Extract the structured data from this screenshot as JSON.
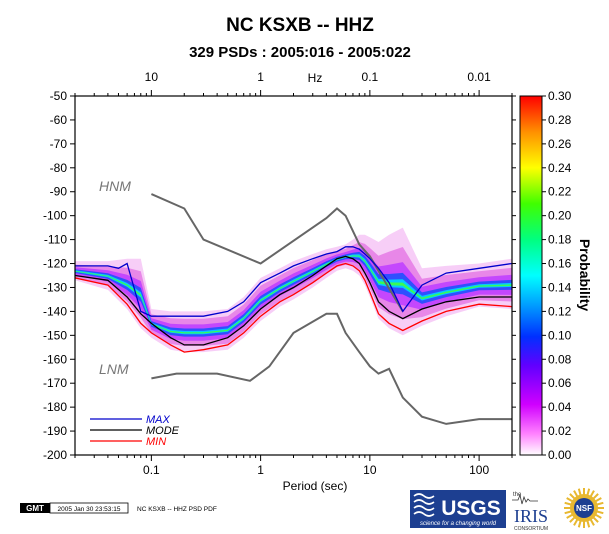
{
  "chart_data": {
    "type": "heatmap",
    "title": "NC KSXB -- HHZ",
    "subtitle": "329 PSDs : 2005:016 - 2005:022",
    "xlabel": "Period (sec)",
    "top_axis_label": "Hz",
    "colorbar_label": "Probability",
    "x_scale": "log",
    "xlim": [
      0.02,
      200
    ],
    "ylim": [
      -200,
      -50
    ],
    "x_ticks": [
      0.1,
      1,
      10,
      100
    ],
    "x_tick_labels": [
      "0.1",
      "1",
      "10",
      "100"
    ],
    "top_ticks": [
      10,
      1,
      0.1,
      0.01
    ],
    "top_tick_labels": [
      "10",
      "1",
      "0.1",
      "0.01"
    ],
    "y_ticks": [
      -50,
      -60,
      -70,
      -80,
      -90,
      -100,
      -110,
      -120,
      -130,
      -140,
      -150,
      -160,
      -170,
      -180,
      -190,
      -200
    ],
    "y_tick_labels": [
      "-50",
      "-60",
      "-70",
      "-80",
      "-90",
      "-100",
      "-110",
      "-120",
      "-130",
      "-140",
      "-150",
      "-160",
      "-170",
      "-180",
      "-190",
      "-200"
    ],
    "colorbar_ticks": [
      "0.30",
      "0.28",
      "0.26",
      "0.24",
      "0.22",
      "0.20",
      "0.18",
      "0.16",
      "0.14",
      "0.12",
      "0.10",
      "0.08",
      "0.06",
      "0.04",
      "0.02",
      "0.00"
    ],
    "colorbar_range": [
      0,
      0.3
    ],
    "legend_position": "bottom-left",
    "series": [
      {
        "name": "MAX",
        "color": "#0000cc",
        "x": [
          0.02,
          0.04,
          0.05,
          0.06,
          0.08,
          0.1,
          0.15,
          0.2,
          0.3,
          0.5,
          0.7,
          1,
          1.5,
          2,
          3,
          4,
          5,
          6,
          7,
          8,
          9,
          10,
          12,
          15,
          20,
          30,
          50,
          100,
          200
        ],
        "y": [
          -121,
          -121,
          -122,
          -120,
          -140,
          -142,
          -142,
          -142,
          -142,
          -140,
          -136,
          -128,
          -124,
          -121,
          -118,
          -116,
          -115,
          -113,
          -113,
          -114,
          -116,
          -118,
          -122,
          -128,
          -140,
          -129,
          -124,
          -122,
          -120
        ]
      },
      {
        "name": "MODE",
        "color": "#000000",
        "x": [
          0.02,
          0.04,
          0.06,
          0.08,
          0.1,
          0.15,
          0.2,
          0.3,
          0.5,
          0.7,
          1,
          1.5,
          2,
          3,
          4,
          5,
          6,
          7,
          8,
          9,
          10,
          12,
          15,
          20,
          30,
          50,
          100,
          200
        ],
        "y": [
          -125,
          -127,
          -134,
          -141,
          -145,
          -151,
          -154,
          -154,
          -151,
          -146,
          -139,
          -133,
          -130,
          -125,
          -121,
          -118,
          -117,
          -118,
          -120,
          -124,
          -128,
          -136,
          -140,
          -143,
          -139,
          -136,
          -134,
          -134
        ]
      },
      {
        "name": "MIN",
        "color": "#ff0000",
        "x": [
          0.02,
          0.04,
          0.06,
          0.08,
          0.1,
          0.15,
          0.2,
          0.3,
          0.5,
          0.7,
          1,
          1.5,
          2,
          3,
          4,
          5,
          6,
          7,
          8,
          9,
          10,
          12,
          15,
          20,
          30,
          50,
          100,
          200
        ],
        "y": [
          -126,
          -129,
          -137,
          -145,
          -149,
          -154,
          -157,
          -156,
          -154,
          -149,
          -142,
          -136,
          -133,
          -128,
          -124,
          -121,
          -120,
          -121,
          -123,
          -127,
          -132,
          -141,
          -145,
          -148,
          -144,
          -140,
          -137,
          -138
        ]
      }
    ],
    "reference_models": [
      {
        "name": "HNM",
        "x": [
          0.1,
          0.2,
          0.3,
          1,
          4,
          5,
          6,
          8,
          10,
          20
        ],
        "y": [
          -91,
          -97,
          -110,
          -120,
          -101,
          -97,
          -100,
          -112,
          -117,
          -140
        ]
      },
      {
        "name": "LNM",
        "x": [
          0.1,
          0.17,
          0.4,
          0.8,
          1.2,
          2,
          4,
          5,
          6,
          8,
          10,
          12,
          15,
          20,
          30,
          50,
          100,
          200
        ],
        "y": [
          -168,
          -166,
          -166,
          -169,
          -163,
          -149,
          -141,
          -141,
          -149,
          -157,
          -163,
          -166,
          -164,
          -176,
          -184,
          -187,
          -185,
          -185
        ]
      }
    ],
    "pdf_density": {
      "comment_free": true,
      "x": [
        0.02,
        0.04,
        0.06,
        0.08,
        0.1,
        0.15,
        0.2,
        0.3,
        0.5,
        0.7,
        1,
        1.5,
        2,
        3,
        4,
        5,
        6,
        7,
        8,
        9,
        10,
        12,
        15,
        20,
        30,
        50,
        100,
        200
      ],
      "upper": [
        -119,
        -119,
        -118,
        -118,
        -139,
        -140,
        -140,
        -140,
        -139,
        -134,
        -126,
        -122,
        -119,
        -116,
        -114,
        -113,
        -112,
        -110,
        -108,
        -108,
        -109,
        -111,
        -108,
        -105,
        -122,
        -121,
        -120,
        -118
      ],
      "lower": [
        -127,
        -131,
        -139,
        -147,
        -151,
        -156,
        -157,
        -157,
        -156,
        -151,
        -144,
        -138,
        -135,
        -130,
        -126,
        -123,
        -122,
        -123,
        -125,
        -129,
        -134,
        -143,
        -147,
        -150,
        -146,
        -142,
        -138,
        -139
      ]
    }
  },
  "footer": {
    "gmt_label": "GMT",
    "timestamp": "2005 Jan 30 23:53:15",
    "file_label": "NC KSXB -- HHZ PSD PDF"
  },
  "logos": {
    "usgs_text": "USGS",
    "usgs_tagline": "science for a changing world",
    "iris_small": "the",
    "iris_text": "IRIS",
    "iris_sub": "CONSORTIUM",
    "nsf_text": "NSF"
  }
}
